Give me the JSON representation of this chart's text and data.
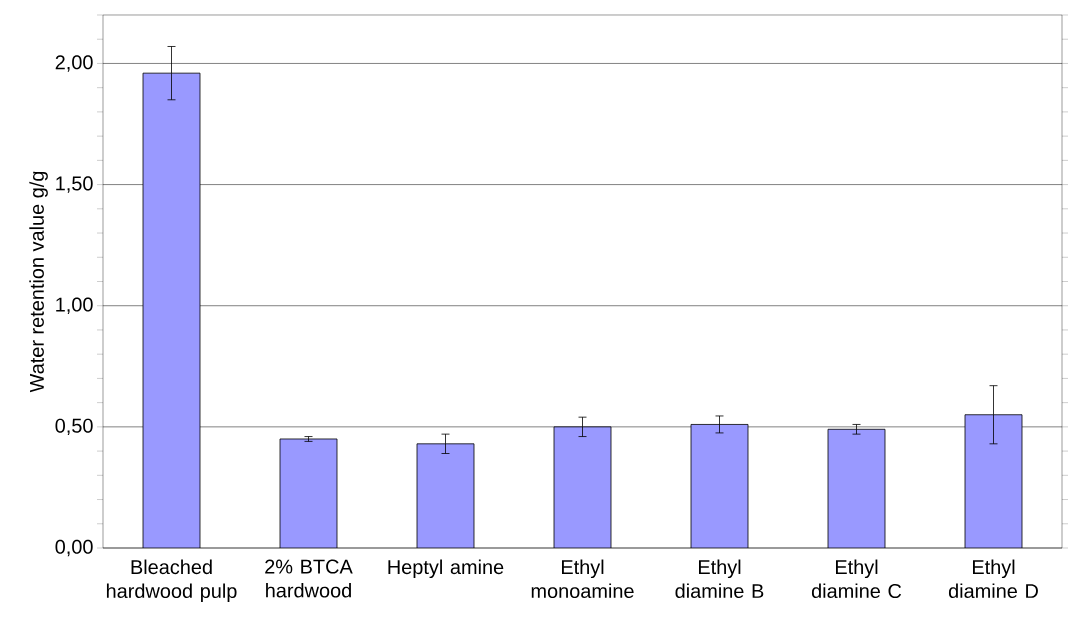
{
  "chart_data": {
    "type": "bar",
    "ylabel": "Water retention value g/g",
    "categories": [
      "Bleached hardwood pulp",
      "2% BTCA hardwood",
      "Heptyl amine",
      "Ethyl monoamine",
      "Ethyl diamine B",
      "Ethyl diamine C",
      "Ethyl diamine D"
    ],
    "values": [
      1.96,
      0.45,
      0.43,
      0.5,
      0.51,
      0.49,
      0.55
    ],
    "errors": [
      0.11,
      0.01,
      0.04,
      0.04,
      0.035,
      0.02,
      0.12
    ],
    "color": "#9999ff",
    "ylim": [
      0,
      2.2
    ],
    "yticks": [
      {
        "value": 0,
        "label": "0,00"
      },
      {
        "value": 0.1,
        "label": null
      },
      {
        "value": 0.2,
        "label": null
      },
      {
        "value": 0.3,
        "label": null
      },
      {
        "value": 0.4,
        "label": null
      },
      {
        "value": 0.5,
        "label": "0,50"
      },
      {
        "value": 0.6,
        "label": null
      },
      {
        "value": 0.7,
        "label": null
      },
      {
        "value": 0.8,
        "label": null
      },
      {
        "value": 0.9,
        "label": null
      },
      {
        "value": 1.0,
        "label": "1,00"
      },
      {
        "value": 1.1,
        "label": null
      },
      {
        "value": 1.2,
        "label": null
      },
      {
        "value": 1.3,
        "label": null
      },
      {
        "value": 1.4,
        "label": null
      },
      {
        "value": 1.5,
        "label": "1,50"
      },
      {
        "value": 1.6,
        "label": null
      },
      {
        "value": 1.7,
        "label": null
      },
      {
        "value": 1.8,
        "label": null
      },
      {
        "value": 1.9,
        "label": null
      },
      {
        "value": 2.0,
        "label": "2,00"
      },
      {
        "value": 2.1,
        "label": null
      },
      {
        "value": 2.2,
        "label": null
      }
    ],
    "grid": "y"
  }
}
